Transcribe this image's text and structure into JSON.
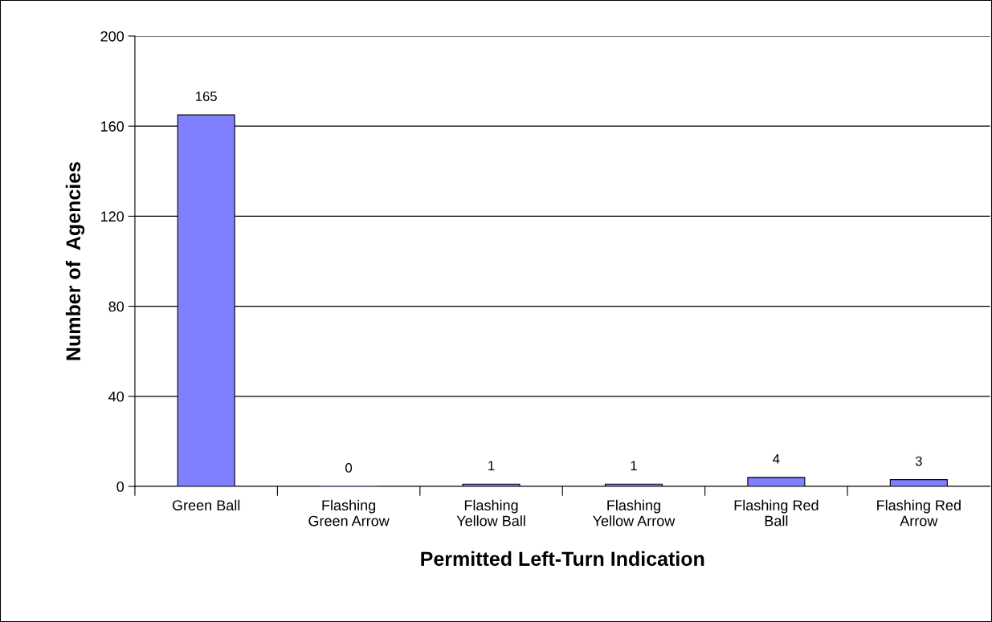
{
  "chart_data": {
    "type": "bar",
    "xlabel": "Permitted Left-Turn Indication",
    "ylabel": "Number of  Agencies",
    "categories": [
      "Green Ball",
      "Flashing\nGreen Arrow",
      "Flashing\nYellow Ball",
      "Flashing\nYellow Arrow",
      "Flashing Red\nBall",
      "Flashing Red\nArrow"
    ],
    "values": [
      165,
      0,
      1,
      1,
      4,
      3
    ],
    "color": "#8080ff",
    "ylim": [
      0,
      200
    ],
    "yticks": [
      0,
      40,
      80,
      120,
      160,
      200
    ],
    "grid": "y",
    "data_labels": true,
    "legend": false
  }
}
